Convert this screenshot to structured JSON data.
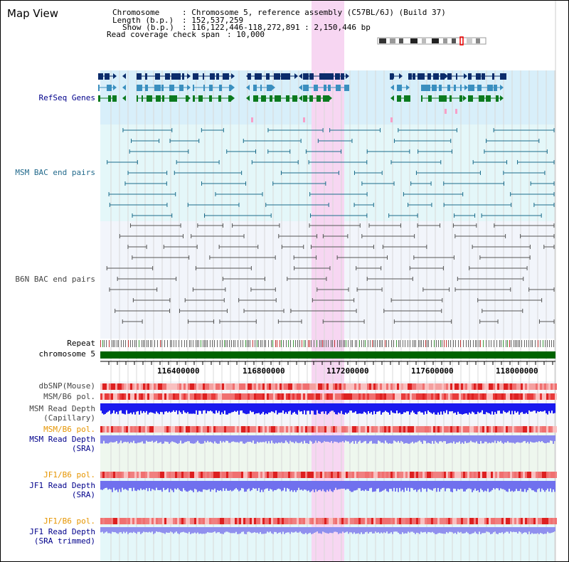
{
  "view_title": "Map View",
  "info": {
    "chromosome_key": "Chromosome",
    "chromosome_value": ": Chromosome 5, reference assembly (C57BL/6J) (Build 37)",
    "length_key": "Length (b.p.)",
    "length_value": ": 152,537,259",
    "show_key": "Show (b.p.)",
    "show_value": ": 116,122,446-118,272,891 : 2,150,446 bp",
    "coverage_key": "Read coverage check span",
    "coverage_value": ": 10,000"
  },
  "tracks": {
    "refseq": "RefSeq Genes",
    "msm_bac": "MSM BAC end pairs",
    "b6n_bac": "B6N BAC end pairs",
    "repeat": "Repeat",
    "chromosome": "chromosome 5",
    "dbsnp": "dbSNP(Mouse)",
    "msm_b6_pol": "MSM/B6 pol.",
    "msm_depth_cap_1": "MSM Read Depth",
    "msm_depth_cap_2": "(Capillary)",
    "msm_b6_pol_sra": "MSM/B6 pol.",
    "msm_depth_sra_1": "MSM Read Depth",
    "msm_depth_sra_2": "(SRA)",
    "jf1_b6_pol": "JF1/B6 pol.",
    "jf1_depth_sra_1": "JF1 Read Depth",
    "jf1_depth_sra_2": "(SRA)",
    "jf1_b6_pol_trim": "JF1/B6 pol.",
    "jf1_depth_trim_1": "JF1 Read Depth",
    "jf1_depth_trim_2": "(SRA trimmed)"
  },
  "ruler": {
    "ticks": [
      "116400000",
      "116800000",
      "117200000",
      "117600000",
      "118000000"
    ]
  },
  "colors": {
    "highlight": "#f7d6f2",
    "refseq_bg": "#d8effa",
    "msm_bg": "#e4f7f9",
    "b6n_bg": "#f2f5fb",
    "chromosome_bar": "#006400",
    "gene_dark": "#0b2c6b",
    "gene_mid": "#3a8fbf",
    "gene_green": "#0b7a1e",
    "msm_pair": "#1b6d8c",
    "b6n_pair": "#555555",
    "depth_cap": "#1a1aee",
    "depth_sra": "#8888ee",
    "pol_red": "#e83a3a",
    "snp_red": "#f07070"
  }
}
